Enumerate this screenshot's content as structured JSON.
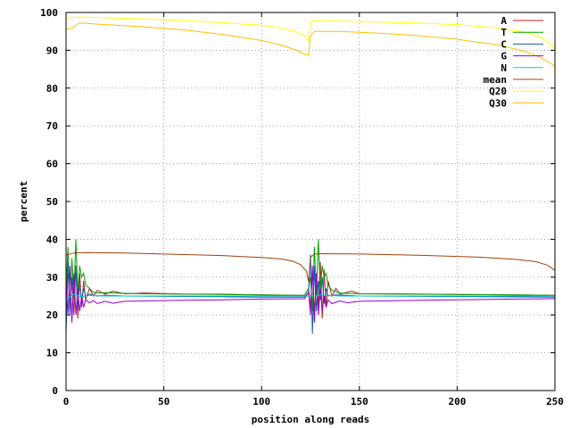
{
  "chart_data": {
    "type": "line",
    "title": "",
    "xlabel": "position along reads",
    "ylabel": "percent",
    "xlim": [
      0,
      250
    ],
    "ylim": [
      0,
      100
    ],
    "xticks": [
      0,
      50,
      100,
      150,
      200,
      250
    ],
    "yticks": [
      0,
      10,
      20,
      30,
      40,
      50,
      60,
      70,
      80,
      90,
      100
    ],
    "grid": true,
    "legend_position": "top-right",
    "series": [
      {
        "name": "A",
        "color": "#b22222",
        "points": [
          [
            0,
            26
          ],
          [
            1,
            32
          ],
          [
            2,
            22
          ],
          [
            3,
            30
          ],
          [
            4,
            20
          ],
          [
            5,
            33
          ],
          [
            6,
            19
          ],
          [
            7,
            31
          ],
          [
            8,
            22
          ],
          [
            9,
            29
          ],
          [
            10,
            24
          ],
          [
            12,
            27
          ],
          [
            14,
            25
          ],
          [
            16,
            26.5
          ],
          [
            20,
            25.5
          ],
          [
            24,
            26.3
          ],
          [
            30,
            25.6
          ],
          [
            40,
            25.8
          ],
          [
            60,
            25.5
          ],
          [
            80,
            25.5
          ],
          [
            100,
            25.3
          ],
          [
            122,
            25.2
          ],
          [
            124,
            27
          ],
          [
            125,
            22
          ],
          [
            126,
            32
          ],
          [
            127,
            20
          ],
          [
            128,
            31
          ],
          [
            129,
            22
          ],
          [
            130,
            34
          ],
          [
            131,
            19
          ],
          [
            132,
            32
          ],
          [
            133,
            22
          ],
          [
            134,
            29
          ],
          [
            136,
            25
          ],
          [
            138,
            27
          ],
          [
            140,
            25.5
          ],
          [
            146,
            26.3
          ],
          [
            150,
            25.6
          ],
          [
            170,
            25.6
          ],
          [
            200,
            25.4
          ],
          [
            230,
            25.3
          ],
          [
            250,
            25.2
          ]
        ]
      },
      {
        "name": "T",
        "color": "#00a000",
        "points": [
          [
            0,
            27
          ],
          [
            1,
            38
          ],
          [
            2,
            21
          ],
          [
            3,
            35
          ],
          [
            4,
            24
          ],
          [
            5,
            40
          ],
          [
            6,
            26
          ],
          [
            7,
            33
          ],
          [
            8,
            30
          ],
          [
            9,
            31
          ],
          [
            10,
            28
          ],
          [
            12,
            27
          ],
          [
            14,
            26
          ],
          [
            16,
            25.8
          ],
          [
            20,
            25.9
          ],
          [
            30,
            25.7
          ],
          [
            40,
            25.6
          ],
          [
            60,
            25.5
          ],
          [
            80,
            25.4
          ],
          [
            100,
            25.3
          ],
          [
            122,
            25.2
          ],
          [
            124,
            27
          ],
          [
            125,
            30
          ],
          [
            126,
            21
          ],
          [
            127,
            38
          ],
          [
            128,
            25
          ],
          [
            129,
            40
          ],
          [
            130,
            27
          ],
          [
            131,
            33
          ],
          [
            132,
            30
          ],
          [
            133,
            31
          ],
          [
            134,
            28
          ],
          [
            136,
            26.5
          ],
          [
            140,
            25.8
          ],
          [
            150,
            25.6
          ],
          [
            170,
            25.5
          ],
          [
            200,
            25.4
          ],
          [
            230,
            25.3
          ],
          [
            250,
            25.2
          ]
        ]
      },
      {
        "name": "C",
        "color": "#1060a0",
        "points": [
          [
            0,
            15
          ],
          [
            1,
            34
          ],
          [
            2,
            20
          ],
          [
            3,
            30
          ],
          [
            4,
            25
          ],
          [
            5,
            32
          ],
          [
            6,
            22
          ],
          [
            7,
            28
          ],
          [
            8,
            24
          ],
          [
            9,
            27
          ],
          [
            10,
            25
          ],
          [
            12,
            25.5
          ],
          [
            16,
            25
          ],
          [
            20,
            25.2
          ],
          [
            30,
            25
          ],
          [
            50,
            24.9
          ],
          [
            80,
            24.8
          ],
          [
            100,
            24.7
          ],
          [
            122,
            24.7
          ],
          [
            124,
            26
          ],
          [
            125,
            36
          ],
          [
            126,
            15
          ],
          [
            127,
            33
          ],
          [
            128,
            21
          ],
          [
            129,
            29
          ],
          [
            130,
            24
          ],
          [
            131,
            30
          ],
          [
            132,
            23
          ],
          [
            133,
            27
          ],
          [
            134,
            25
          ],
          [
            138,
            25.3
          ],
          [
            150,
            25
          ],
          [
            180,
            24.9
          ],
          [
            210,
            24.8
          ],
          [
            250,
            24.7
          ]
        ]
      },
      {
        "name": "G",
        "color": "#9400d3",
        "points": [
          [
            0,
            29
          ],
          [
            1,
            20
          ],
          [
            2,
            33
          ],
          [
            3,
            18
          ],
          [
            4,
            31
          ],
          [
            5,
            20
          ],
          [
            6,
            27
          ],
          [
            7,
            21
          ],
          [
            8,
            25
          ],
          [
            9,
            22
          ],
          [
            10,
            24
          ],
          [
            12,
            23.2
          ],
          [
            14,
            23.8
          ],
          [
            16,
            23
          ],
          [
            20,
            23.6
          ],
          [
            24,
            23.1
          ],
          [
            30,
            23.6
          ],
          [
            40,
            23.7
          ],
          [
            60,
            23.9
          ],
          [
            80,
            24
          ],
          [
            100,
            24.2
          ],
          [
            122,
            24.3
          ],
          [
            124,
            26
          ],
          [
            125,
            20
          ],
          [
            126,
            33
          ],
          [
            127,
            18
          ],
          [
            128,
            31
          ],
          [
            129,
            20
          ],
          [
            130,
            27
          ],
          [
            131,
            21
          ],
          [
            132,
            25
          ],
          [
            133,
            22
          ],
          [
            134,
            24
          ],
          [
            136,
            23
          ],
          [
            140,
            23.7
          ],
          [
            144,
            23.2
          ],
          [
            150,
            23.6
          ],
          [
            170,
            23.8
          ],
          [
            200,
            24
          ],
          [
            230,
            24.2
          ],
          [
            250,
            24.3
          ]
        ]
      },
      {
        "name": "N",
        "color": "#00cccc",
        "points": [
          [
            0,
            24
          ],
          [
            4,
            25.5
          ],
          [
            8,
            24.8
          ],
          [
            12,
            25.2
          ],
          [
            20,
            25
          ],
          [
            50,
            25
          ],
          [
            100,
            25
          ],
          [
            125,
            25
          ],
          [
            130,
            25.3
          ],
          [
            140,
            25
          ],
          [
            180,
            25
          ],
          [
            250,
            25
          ]
        ]
      },
      {
        "name": "mean",
        "color": "#a0400a",
        "points": [
          [
            0,
            35.8
          ],
          [
            4,
            36.4
          ],
          [
            10,
            36.5
          ],
          [
            30,
            36.4
          ],
          [
            50,
            36.1
          ],
          [
            80,
            35.7
          ],
          [
            100,
            35.2
          ],
          [
            110,
            34.8
          ],
          [
            116,
            34.2
          ],
          [
            120,
            33.3
          ],
          [
            123,
            31.5
          ],
          [
            124,
            28.8
          ],
          [
            125,
            35.2
          ],
          [
            127,
            36.1
          ],
          [
            132,
            36.2
          ],
          [
            150,
            36.1
          ],
          [
            180,
            35.8
          ],
          [
            210,
            35.3
          ],
          [
            230,
            34.7
          ],
          [
            240,
            34.1
          ],
          [
            246,
            33.2
          ],
          [
            250,
            31.8
          ]
        ]
      },
      {
        "name": "Q20",
        "color": "#ffff00",
        "points": [
          [
            0,
            98.5
          ],
          [
            3,
            98.7
          ],
          [
            8,
            98.8
          ],
          [
            20,
            98.6
          ],
          [
            40,
            98.3
          ],
          [
            60,
            97.9
          ],
          [
            80,
            97.3
          ],
          [
            100,
            96.6
          ],
          [
            110,
            95.9
          ],
          [
            118,
            94.9
          ],
          [
            122,
            93.8
          ],
          [
            124,
            92.5
          ],
          [
            125,
            97.5
          ],
          [
            127,
            97.8
          ],
          [
            140,
            97.7
          ],
          [
            160,
            97.5
          ],
          [
            180,
            97.2
          ],
          [
            200,
            96.8
          ],
          [
            220,
            96.0
          ],
          [
            235,
            94.8
          ],
          [
            243,
            93.3
          ],
          [
            248,
            91.6
          ],
          [
            250,
            90.2
          ]
        ]
      },
      {
        "name": "Q30",
        "color": "#ffc000",
        "points": [
          [
            0,
            95.5
          ],
          [
            3,
            95.9
          ],
          [
            5,
            96.5
          ],
          [
            6,
            97.0
          ],
          [
            8,
            97.2
          ],
          [
            20,
            96.8
          ],
          [
            40,
            96.2
          ],
          [
            60,
            95.4
          ],
          [
            80,
            94.2
          ],
          [
            100,
            92.6
          ],
          [
            110,
            91.4
          ],
          [
            118,
            90.0
          ],
          [
            122,
            89.0
          ],
          [
            124,
            88.6
          ],
          [
            125,
            93.8
          ],
          [
            127,
            95.0
          ],
          [
            140,
            95.0
          ],
          [
            160,
            94.5
          ],
          [
            180,
            93.9
          ],
          [
            200,
            92.9
          ],
          [
            220,
            91.5
          ],
          [
            235,
            89.7
          ],
          [
            243,
            88.0
          ],
          [
            248,
            86.5
          ],
          [
            250,
            85.7
          ]
        ]
      }
    ]
  }
}
